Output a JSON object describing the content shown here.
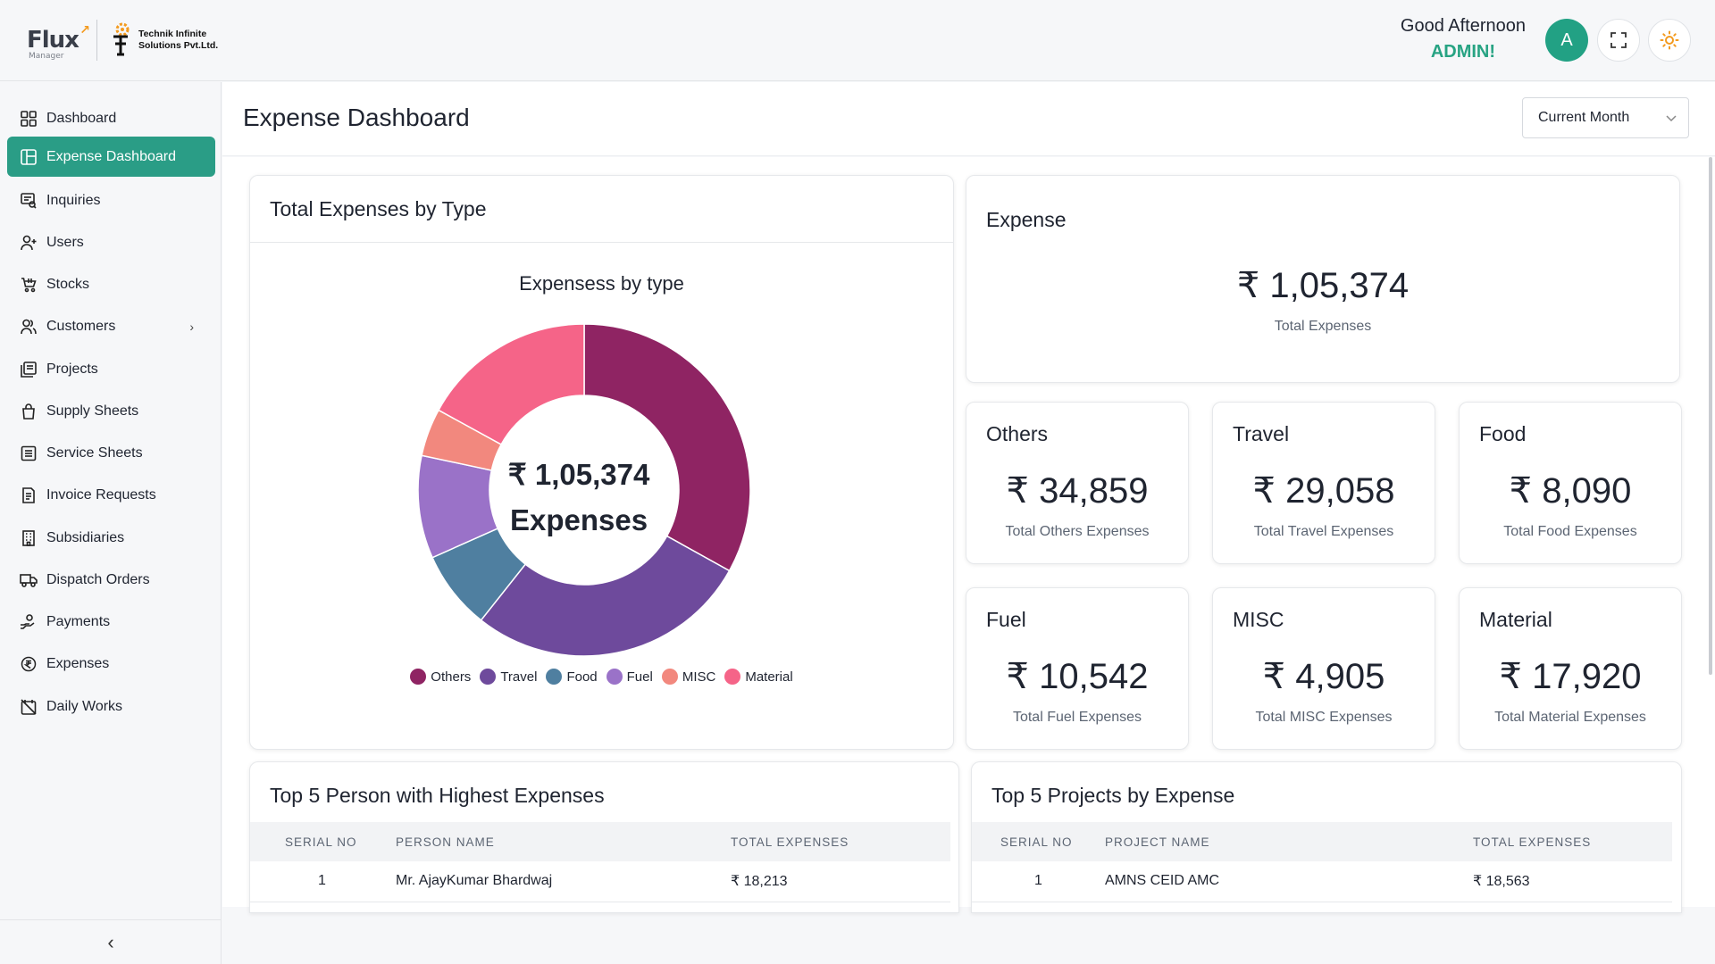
{
  "header": {
    "brand": "Flux",
    "brand_sub": "Manager",
    "company_line1": "Technik Infinite",
    "company_line2": "Solutions Pvt.Ltd.",
    "greeting": "Good Afternoon",
    "user_role": "ADMIN!",
    "avatar_letter": "A"
  },
  "sidebar": {
    "items": [
      {
        "label": "Dashboard",
        "icon": "grid-icon"
      },
      {
        "label": "Expense Dashboard",
        "icon": "layout-icon",
        "active": true
      },
      {
        "label": "Inquiries",
        "icon": "inquiry-icon"
      },
      {
        "label": "Users",
        "icon": "user-plus-icon"
      },
      {
        "label": "Stocks",
        "icon": "cart-icon"
      },
      {
        "label": "Customers",
        "icon": "users-icon",
        "has_submenu": true
      },
      {
        "label": "Projects",
        "icon": "projects-icon"
      },
      {
        "label": "Supply Sheets",
        "icon": "bag-icon"
      },
      {
        "label": "Service Sheets",
        "icon": "sheet-icon"
      },
      {
        "label": "Invoice Requests",
        "icon": "invoice-icon"
      },
      {
        "label": "Subsidiaries",
        "icon": "building-icon"
      },
      {
        "label": "Dispatch Orders",
        "icon": "truck-icon"
      },
      {
        "label": "Payments",
        "icon": "hand-coin-icon"
      },
      {
        "label": "Expenses",
        "icon": "rupee-circle-icon"
      },
      {
        "label": "Daily Works",
        "icon": "calendar-off-icon"
      }
    ]
  },
  "page": {
    "title": "Expense Dashboard",
    "period": "Current Month"
  },
  "chart_card": {
    "title": "Total Expenses by Type",
    "chart_title": "Expensess by type",
    "center_value": "₹ 1,05,374",
    "center_label": "Expenses"
  },
  "chart_data": {
    "type": "pie",
    "title": "Expensess by type",
    "categories": [
      "Others",
      "Travel",
      "Food",
      "Fuel",
      "MISC",
      "Material"
    ],
    "values": [
      34859,
      29058,
      8090,
      10542,
      4905,
      17920
    ],
    "colors": [
      "#8f2463",
      "#6e4a9c",
      "#4f7fa0",
      "#9a72c8",
      "#f2887e",
      "#f56488"
    ],
    "legend": "bottom"
  },
  "total_card": {
    "title": "Expense",
    "value": "₹ 1,05,374",
    "label": "Total Expenses"
  },
  "stats": [
    {
      "title": "Others",
      "value": "₹ 34,859",
      "label": "Total Others Expenses"
    },
    {
      "title": "Travel",
      "value": "₹ 29,058",
      "label": "Total Travel Expenses"
    },
    {
      "title": "Food",
      "value": "₹ 8,090",
      "label": "Total Food Expenses"
    },
    {
      "title": "Fuel",
      "value": "₹ 10,542",
      "label": "Total Fuel Expenses"
    },
    {
      "title": "MISC",
      "value": "₹ 4,905",
      "label": "Total MISC Expenses"
    },
    {
      "title": "Material",
      "value": "₹ 17,920",
      "label": "Total Material Expenses"
    }
  ],
  "persons_table": {
    "title": "Top 5 Person with Highest Expenses",
    "columns": [
      "SERIAL NO",
      "PERSON NAME",
      "TOTAL EXPENSES"
    ],
    "rows": [
      [
        "1",
        "Mr. AjayKumar Bhardwaj",
        "₹ 18,213"
      ]
    ]
  },
  "projects_table": {
    "title": "Top 5 Projects by Expense",
    "columns": [
      "SERIAL NO",
      "PROJECT NAME",
      "TOTAL EXPENSES"
    ],
    "rows": [
      [
        "1",
        "AMNS CEID AMC",
        "₹ 18,563"
      ]
    ]
  }
}
